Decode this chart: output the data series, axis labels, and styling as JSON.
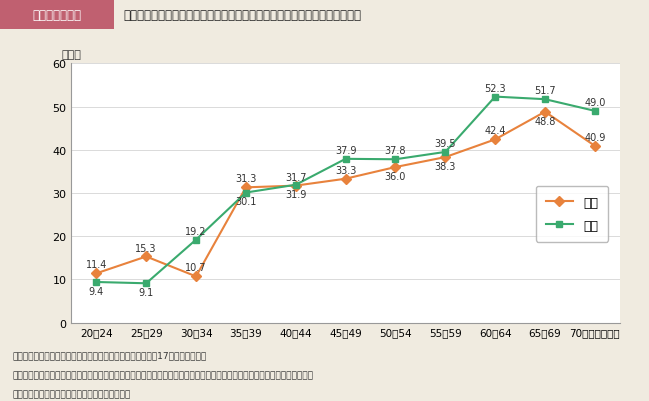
{
  "header_label": "第１－４－３図",
  "header_title": "町内会などの地域活動において，社会の役に立ちたいと思っている者の割合",
  "ylabel": "（％）",
  "categories": [
    "20～24",
    "25～29",
    "30～34",
    "35～39",
    "40～44",
    "45～49",
    "50～54",
    "55～59",
    "60～64",
    "65～69",
    "70歳以上（歳）"
  ],
  "female_values": [
    11.4,
    15.3,
    10.7,
    31.3,
    31.7,
    33.3,
    36.0,
    38.3,
    42.4,
    48.8,
    40.9
  ],
  "male_values": [
    9.4,
    9.1,
    19.2,
    30.1,
    31.9,
    37.9,
    37.8,
    39.5,
    52.3,
    51.7,
    49.0
  ],
  "female_color": "#e8823c",
  "male_color": "#3aaa6e",
  "ylim": [
    0,
    60
  ],
  "yticks": [
    0,
    10,
    20,
    30,
    40,
    50,
    60
  ],
  "legend_female": "女性",
  "legend_male": "男性",
  "bg_color": "#f0ebe0",
  "plot_bg_color": "#ffffff",
  "header_bg_color": "#c06070",
  "footnote1": "（備考）　１．内閣府「社会意識に関する世論調査」（平成17年）より作成。",
  "footnote2": "　　　　　２．「何か社会のために役立ちたいと思っている」と答えた者のうちどのようなことかと聞いたところ「町内会な",
  "footnote3": "　　　　　　どの地域活動」と答えた者の割合。",
  "female_label_va": [
    "bottom",
    "bottom",
    "bottom",
    "bottom",
    "bottom",
    "bottom",
    "top",
    "top",
    "bottom",
    "top",
    "bottom"
  ],
  "male_label_va": [
    "top",
    "top",
    "bottom",
    "top",
    "top",
    "bottom",
    "bottom",
    "bottom",
    "bottom",
    "bottom",
    "bottom"
  ]
}
